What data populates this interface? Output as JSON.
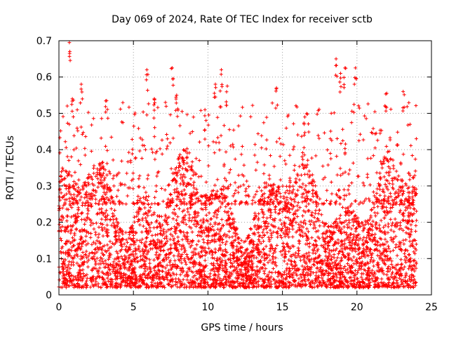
{
  "chart_data": {
    "type": "scatter",
    "title": "Day 069 of 2024, Rate Of TEC Index for receiver sctb",
    "xlabel": "GPS time / hours",
    "ylabel": "ROTI / TECUs",
    "xlim": [
      0,
      25
    ],
    "ylim": [
      0,
      0.7
    ],
    "xticks": [
      0,
      5,
      10,
      15,
      20,
      25
    ],
    "xtick_labels": [
      "0",
      "5",
      "10",
      "15",
      "20",
      "25"
    ],
    "yticks": [
      0,
      0.1,
      0.2,
      0.3,
      0.4,
      0.5,
      0.6,
      0.7
    ],
    "ytick_labels": [
      "0",
      "0.1",
      "0.2",
      "0.3",
      "0.4",
      "0.5",
      "0.6",
      "0.7"
    ],
    "grid": true,
    "marker": "+",
    "colors": {
      "points": "#ff0000",
      "grid": "#a0a0a0",
      "frame": "#000000"
    },
    "series": [
      {
        "name": "ROTI",
        "x_range_hours": [
          0,
          24
        ],
        "bulk_range": [
          0.02,
          0.3
        ],
        "highlights": [
          {
            "x": 0.7,
            "y": 0.695
          },
          {
            "x": 0.9,
            "y": 0.54
          },
          {
            "x": 1.5,
            "y": 0.58
          },
          {
            "x": 3.2,
            "y": 0.535
          },
          {
            "x": 5.9,
            "y": 0.62
          },
          {
            "x": 6.4,
            "y": 0.54
          },
          {
            "x": 7.6,
            "y": 0.625
          },
          {
            "x": 7.9,
            "y": 0.55
          },
          {
            "x": 9.8,
            "y": 0.51
          },
          {
            "x": 10.5,
            "y": 0.58
          },
          {
            "x": 10.9,
            "y": 0.62
          },
          {
            "x": 11.3,
            "y": 0.575
          },
          {
            "x": 14.6,
            "y": 0.57
          },
          {
            "x": 16.5,
            "y": 0.49
          },
          {
            "x": 18.6,
            "y": 0.65
          },
          {
            "x": 18.9,
            "y": 0.61
          },
          {
            "x": 19.2,
            "y": 0.625
          },
          {
            "x": 19.9,
            "y": 0.625
          },
          {
            "x": 22.0,
            "y": 0.555
          },
          {
            "x": 23.1,
            "y": 0.56
          }
        ]
      }
    ]
  }
}
